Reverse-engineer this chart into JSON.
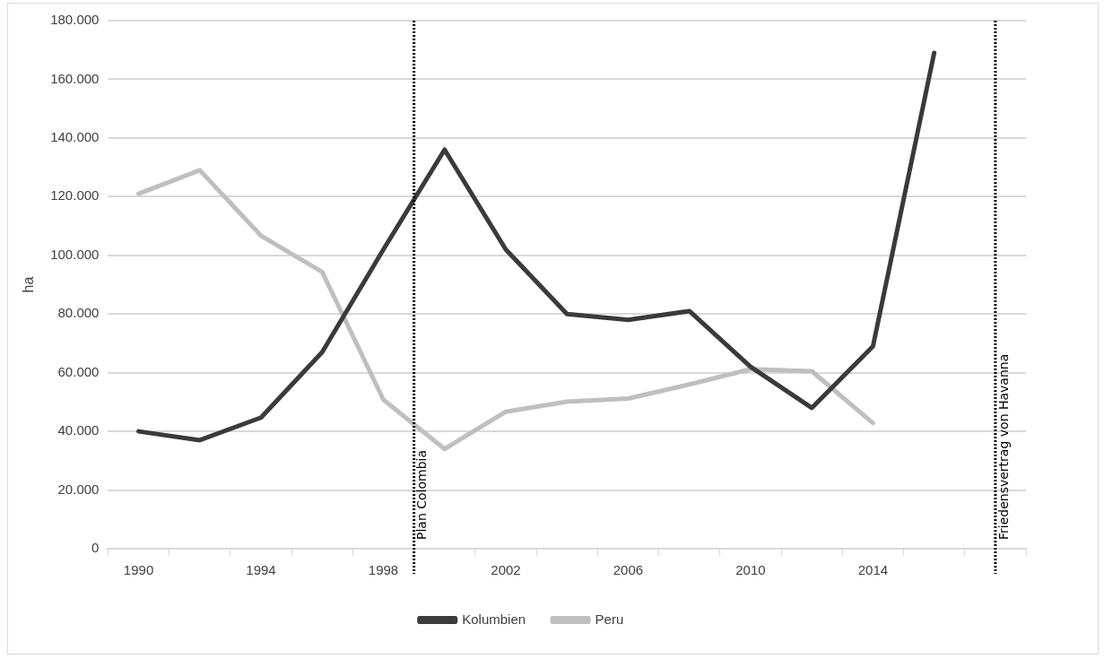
{
  "chart_data": {
    "type": "line",
    "ylabel": "ha",
    "xlim": [
      1989,
      2019
    ],
    "xticks": [
      {
        "value": 1989,
        "label": null
      },
      1990,
      {
        "value": 1991,
        "label": null
      },
      {
        "value": 1993,
        "label": null
      },
      1994,
      {
        "value": 1995,
        "label": null
      },
      {
        "value": 1997,
        "label": null
      },
      1998,
      {
        "value": 1999,
        "label": null
      },
      {
        "value": 2001,
        "label": null
      },
      2002,
      {
        "value": 2003,
        "label": null
      },
      {
        "value": 2005,
        "label": null
      },
      2006,
      {
        "value": 2007,
        "label": null
      },
      {
        "value": 2009,
        "label": null
      },
      2010,
      {
        "value": 2011,
        "label": null
      },
      {
        "value": 2013,
        "label": null
      },
      2014,
      {
        "value": 2015,
        "label": null
      },
      {
        "value": 2017,
        "label": null
      },
      {
        "value": 2019,
        "label": null
      }
    ],
    "ylim": [
      0,
      180000
    ],
    "yticks": [
      0,
      {
        "value": 20000,
        "label": "20.000"
      },
      {
        "value": 40000,
        "label": "40.000"
      },
      {
        "value": 60000,
        "label": "60.000"
      },
      {
        "value": 80000,
        "label": "80.000"
      },
      {
        "value": 100000,
        "label": "100.000"
      },
      {
        "value": 120000,
        "label": "120.000"
      },
      {
        "value": 140000,
        "label": "140.000"
      },
      {
        "value": 160000,
        "label": "160.000"
      },
      {
        "value": 180000,
        "label": "180.000"
      }
    ],
    "x": [
      1990,
      1992,
      1994,
      1996,
      1998,
      2000,
      2002,
      2004,
      2006,
      2008,
      2010,
      2012,
      2014,
      2016
    ],
    "series": [
      {
        "name": "Kolumbien",
        "color": "#3a3a3a",
        "values": [
          40000,
          37000,
          44700,
          67000,
          102000,
          136000,
          102000,
          80000,
          78000,
          81000,
          62000,
          48000,
          69000,
          169000
        ]
      },
      {
        "name": "Peru",
        "color": "#bfbfbf",
        "values": [
          121000,
          129000,
          106700,
          94300,
          50800,
          34000,
          46700,
          50100,
          51200,
          56000,
          61200,
          60500,
          42800,
          null
        ]
      }
    ],
    "ref_lines": [
      {
        "axis": "x",
        "value": 1999,
        "label": "Plan Colombia",
        "color": "#000000",
        "line_style": "dotted"
      },
      {
        "axis": "x",
        "value": 2018,
        "label": "Friedensvertrag von Havanna",
        "color": "#000000",
        "line_style": "dotted"
      }
    ],
    "grid": "y",
    "legend": "bottom",
    "marker": "none",
    "line_style": "solid"
  }
}
